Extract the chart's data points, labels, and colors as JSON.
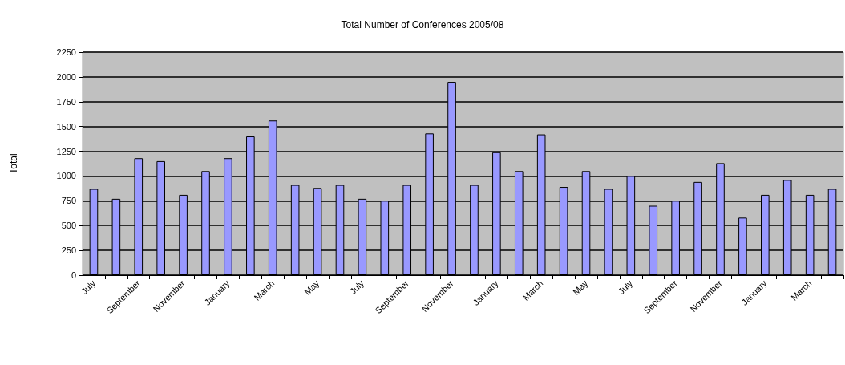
{
  "chart_data": {
    "type": "bar",
    "title": "Total Number of Conferences 2005/08",
    "ylabel": "Total",
    "categories": [
      "July",
      null,
      "September",
      null,
      "November",
      null,
      "January",
      null,
      "March",
      null,
      "May",
      null,
      "July",
      null,
      "September",
      null,
      "November",
      null,
      "January",
      null,
      "March",
      null,
      "May",
      null,
      "July",
      null,
      "September",
      null,
      "November",
      null,
      "January",
      null,
      "March",
      null
    ],
    "values": [
      870,
      770,
      1180,
      1150,
      810,
      1050,
      1180,
      1400,
      1560,
      910,
      880,
      910,
      770,
      750,
      910,
      1430,
      1950,
      910,
      1240,
      1050,
      1420,
      890,
      1050,
      870,
      1000,
      700,
      750,
      940,
      1130,
      580,
      810,
      960,
      810,
      870
    ],
    "color": "#9999ff",
    "ylim": [
      0,
      2250
    ],
    "yticks": [
      0,
      250,
      500,
      750,
      1000,
      1250,
      1500,
      1750,
      2000,
      2250
    ],
    "grid": "y"
  }
}
